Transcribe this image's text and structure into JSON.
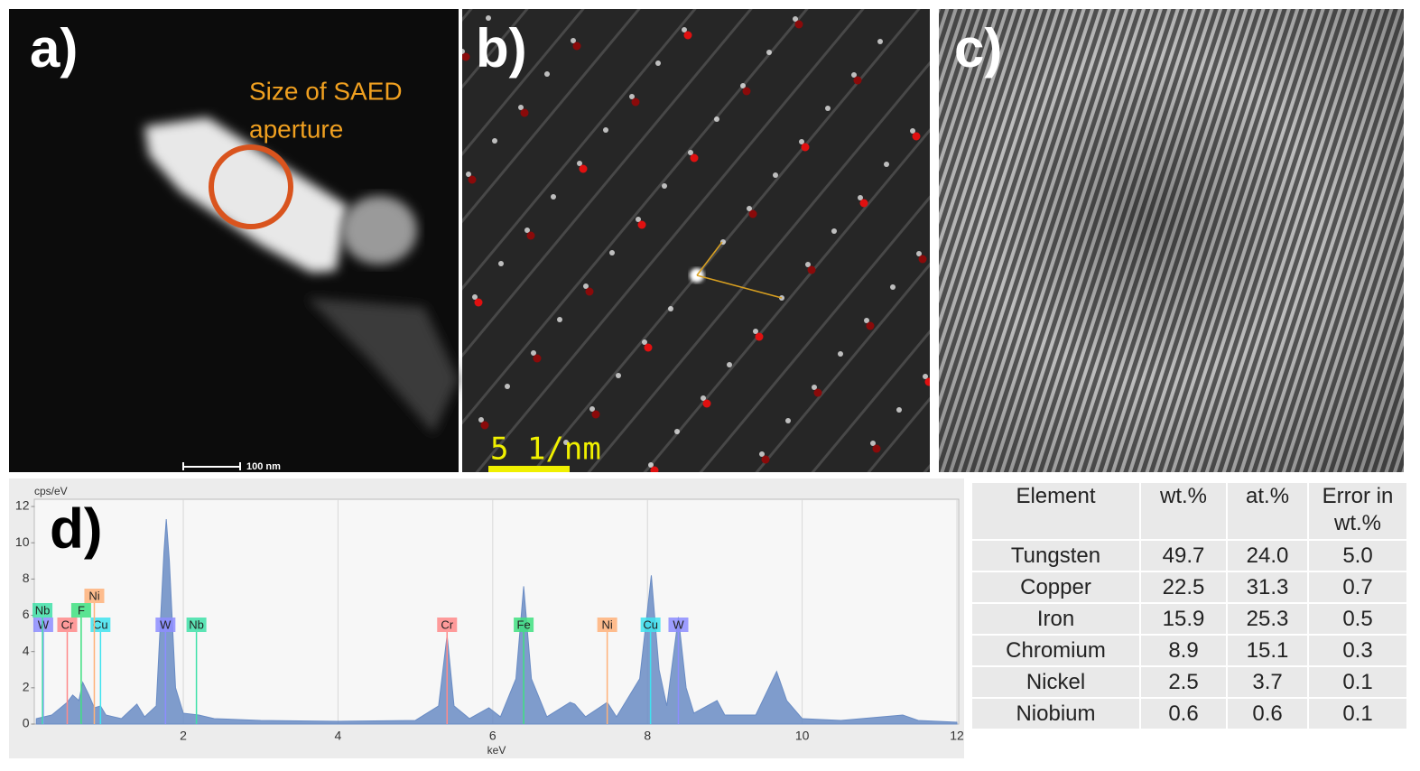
{
  "panels": {
    "a": {
      "label": "a)",
      "annotation": [
        "Size of SAED",
        "aperture"
      ],
      "scale_bar": "100 nm"
    },
    "b": {
      "label": "b)",
      "scale_bar": "5 1/nm"
    },
    "c": {
      "label": "c)"
    },
    "d": {
      "label": "d)"
    }
  },
  "chart_data": {
    "type": "area",
    "ylabel": "cps/eV",
    "xlabel": "keV",
    "x": [
      0.1,
      0.2,
      0.3,
      0.5,
      0.57,
      0.65,
      0.7,
      0.78,
      0.85,
      0.93,
      1.0,
      1.2,
      1.4,
      1.5,
      1.65,
      1.75,
      1.78,
      1.82,
      1.9,
      2.0,
      2.2,
      2.4,
      3.0,
      4.0,
      5.0,
      5.3,
      5.41,
      5.5,
      5.7,
      5.95,
      6.1,
      6.3,
      6.4,
      6.5,
      6.7,
      7.0,
      7.06,
      7.2,
      7.48,
      7.6,
      7.9,
      8.05,
      8.15,
      8.25,
      8.4,
      8.5,
      8.6,
      8.9,
      9.0,
      9.4,
      9.67,
      9.8,
      10.0,
      10.5,
      11.3,
      11.5,
      12.0
    ],
    "series": [
      {
        "color": "#6a8cc4",
        "values": [
          0.3,
          0.4,
          0.5,
          1.2,
          1.6,
          1.3,
          2.3,
          1.6,
          0.9,
          1.0,
          0.5,
          0.3,
          1.1,
          0.4,
          1.0,
          9.5,
          11.3,
          9.0,
          2.0,
          0.6,
          0.5,
          0.3,
          0.2,
          0.15,
          0.2,
          1.0,
          4.9,
          1.0,
          0.3,
          0.9,
          0.4,
          2.5,
          7.6,
          2.5,
          0.4,
          1.2,
          1.1,
          0.4,
          1.2,
          0.4,
          2.5,
          8.2,
          3.0,
          1.0,
          5.9,
          2.0,
          0.6,
          1.3,
          0.5,
          0.5,
          2.9,
          1.3,
          0.3,
          0.2,
          0.5,
          0.2,
          0.1
        ]
      }
    ],
    "markers": [
      {
        "label": "W",
        "x": 0.19,
        "color": "#8d8dff"
      },
      {
        "label": "Cr",
        "x": 0.5,
        "color": "#ff8a8a"
      },
      {
        "label": "Cu",
        "x": 0.93,
        "color": "#3fe3ef"
      },
      {
        "label": "W",
        "x": 1.77,
        "color": "#8d8dff"
      },
      {
        "label": "Nb",
        "x": 2.17,
        "color": "#3fe0a8"
      },
      {
        "label": "Cr",
        "x": 5.41,
        "color": "#ff8a8a"
      },
      {
        "label": "Fe",
        "x": 6.4,
        "color": "#3fe080"
      },
      {
        "label": "Ni",
        "x": 7.48,
        "color": "#ffb27a"
      },
      {
        "label": "Cu",
        "x": 8.04,
        "color": "#3fe3ef"
      },
      {
        "label": "W",
        "x": 8.4,
        "color": "#8d8dff"
      },
      {
        "label": "Nb",
        "x": 0.18,
        "color": "#3fe0a8"
      },
      {
        "label": "F",
        "x": 0.68,
        "color": "#3fe080"
      },
      {
        "label": "Ni",
        "x": 0.85,
        "color": "#ffb27a"
      }
    ],
    "xlim": [
      0.08,
      12
    ],
    "ylim": [
      0,
      12.4
    ],
    "xticks": [
      2,
      4,
      6,
      8,
      10,
      12
    ],
    "yticks": [
      0,
      2,
      4,
      6,
      8,
      10,
      12
    ],
    "grid": true
  },
  "table": {
    "header": [
      "Element",
      "wt.%",
      "at.%",
      "Error in wt.%"
    ],
    "rows": [
      [
        "Tungsten",
        "49.7",
        "24.0",
        "5.0"
      ],
      [
        "Copper",
        "22.5",
        "31.3",
        "0.7"
      ],
      [
        "Iron",
        "15.9",
        "25.3",
        "0.5"
      ],
      [
        "Chromium",
        "8.9",
        "15.1",
        "0.3"
      ],
      [
        "Nickel",
        "2.5",
        "3.7",
        "0.1"
      ],
      [
        "Niobium",
        "0.6",
        "0.6",
        "0.1"
      ]
    ]
  }
}
